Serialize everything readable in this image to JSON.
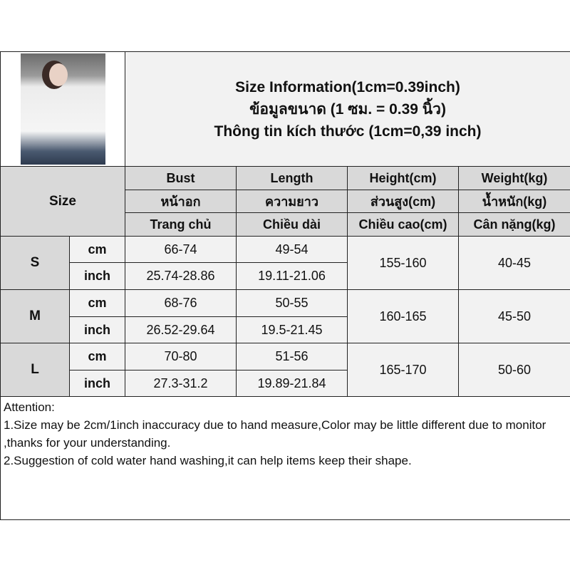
{
  "title": {
    "line1": "Size Information(1cm=0.39inch)",
    "line2": "ข้อมูลขนาด (1 ซม. = 0.39 นิ้ว)",
    "line3": "Thông tin kích thước (1cm=0,39 inch)"
  },
  "header": {
    "size_label": "Size",
    "columns": [
      {
        "en": "Bust",
        "th": "หน้าอก",
        "vi": "Trang chủ"
      },
      {
        "en": "Length",
        "th": "ความยาว",
        "vi": "Chiều dài"
      },
      {
        "en": "Height(cm)",
        "th": "ส่วนสูง(cm)",
        "vi": "Chiều cao(cm)"
      },
      {
        "en": "Weight(kg)",
        "th": "น้ำหนัก(kg)",
        "vi": "Cân nặng(kg)"
      }
    ]
  },
  "rows": [
    {
      "size": "S",
      "cm_label": "cm",
      "inch_label": "inch",
      "bust_cm": "66-74",
      "length_cm": "49-54",
      "bust_inch": "25.74-28.86",
      "length_inch": "19.11-21.06",
      "height": "155-160",
      "weight": "40-45"
    },
    {
      "size": "M",
      "cm_label": "cm",
      "inch_label": "inch",
      "bust_cm": "68-76",
      "length_cm": "50-55",
      "bust_inch": "26.52-29.64",
      "length_inch": "19.5-21.45",
      "height": "160-165",
      "weight": "45-50"
    },
    {
      "size": "L",
      "cm_label": "cm",
      "inch_label": "inch",
      "bust_cm": "70-80",
      "length_cm": "51-56",
      "bust_inch": "27.3-31.2",
      "length_inch": "19.89-21.84",
      "height": "165-170",
      "weight": "50-60"
    }
  ],
  "notes": {
    "heading": "Attention:",
    "line1": "1.Size may be 2cm/1inch inaccuracy due to hand measure,Color may be little different due to monitor ,thanks for your understanding.",
    "line2": "2.Suggestion of cold water hand washing,it can help items keep their shape."
  }
}
